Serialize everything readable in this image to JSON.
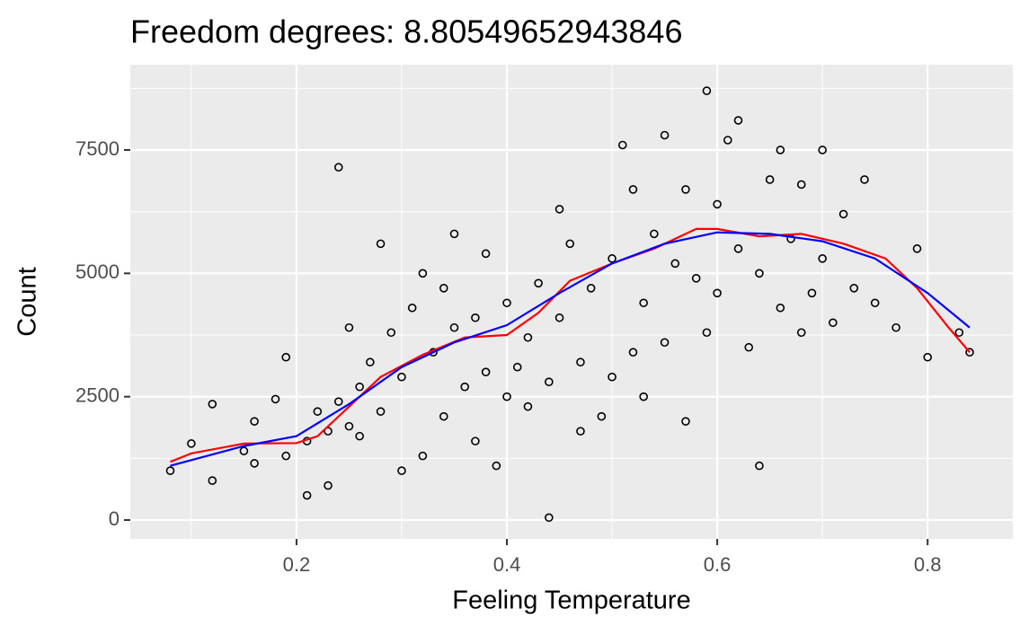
{
  "chart_data": {
    "type": "scatter",
    "title": "Freedom degrees: 8.80549652943846",
    "x_label": "Feeling Temperature",
    "y_label": "Count",
    "xlim": [
      0.042,
      0.881
    ],
    "ylim": [
      -382,
      9229
    ],
    "xticks": [
      0.2,
      0.4,
      0.6,
      0.8
    ],
    "yticks": [
      0,
      2500,
      5000,
      7500
    ],
    "minor_xticks": [
      0.1,
      0.3,
      0.5,
      0.7
    ],
    "minor_yticks": [
      1250,
      3750,
      6250,
      8750
    ],
    "grid": true,
    "series": [
      {
        "type": "scatter",
        "color": "#000000",
        "x": [
          0.08,
          0.1,
          0.12,
          0.12,
          0.15,
          0.16,
          0.16,
          0.18,
          0.19,
          0.19,
          0.21,
          0.21,
          0.22,
          0.23,
          0.23,
          0.24,
          0.24,
          0.25,
          0.25,
          0.26,
          0.26,
          0.27,
          0.28,
          0.28,
          0.29,
          0.3,
          0.3,
          0.31,
          0.32,
          0.32,
          0.33,
          0.34,
          0.34,
          0.35,
          0.35,
          0.36,
          0.37,
          0.37,
          0.38,
          0.38,
          0.39,
          0.4,
          0.4,
          0.41,
          0.42,
          0.42,
          0.43,
          0.44,
          0.44,
          0.45,
          0.45,
          0.46,
          0.47,
          0.47,
          0.48,
          0.49,
          0.5,
          0.5,
          0.51,
          0.52,
          0.52,
          0.53,
          0.53,
          0.54,
          0.55,
          0.55,
          0.56,
          0.57,
          0.57,
          0.58,
          0.59,
          0.59,
          0.6,
          0.6,
          0.61,
          0.62,
          0.62,
          0.63,
          0.64,
          0.64,
          0.65,
          0.66,
          0.66,
          0.67,
          0.68,
          0.68,
          0.69,
          0.7,
          0.7,
          0.71,
          0.72,
          0.73,
          0.74,
          0.75,
          0.77,
          0.79,
          0.8,
          0.83,
          0.84
        ],
        "values": [
          1000,
          1550,
          800,
          2350,
          1400,
          2000,
          1150,
          2450,
          1300,
          3300,
          1600,
          500,
          2200,
          700,
          1800,
          7150,
          2400,
          1900,
          3900,
          2700,
          1700,
          3200,
          5600,
          2200,
          3800,
          1000,
          2900,
          4300,
          5000,
          1300,
          3400,
          4700,
          2100,
          5800,
          3900,
          2700,
          1600,
          4100,
          5400,
          3000,
          1100,
          4400,
          2500,
          3100,
          2300,
          3700,
          4800,
          50,
          2800,
          6300,
          4100,
          5600,
          3200,
          1800,
          4700,
          2100,
          5300,
          2900,
          7600,
          3400,
          6700,
          4400,
          2500,
          5800,
          3600,
          7800,
          5200,
          2000,
          6700,
          4900,
          8700,
          3800,
          6400,
          4600,
          7700,
          5500,
          8100,
          3500,
          1100,
          5000,
          6900,
          7500,
          4300,
          5700,
          3800,
          6800,
          4600,
          5300,
          7500,
          4000,
          6200,
          4700,
          6900,
          4400,
          3900,
          5500,
          3300,
          3800,
          3400
        ]
      },
      {
        "type": "line",
        "color": "#ff0000",
        "x": [
          0.08,
          0.1,
          0.15,
          0.2,
          0.22,
          0.25,
          0.28,
          0.32,
          0.36,
          0.4,
          0.43,
          0.46,
          0.5,
          0.54,
          0.58,
          0.6,
          0.64,
          0.68,
          0.72,
          0.76,
          0.79,
          0.82,
          0.84
        ],
        "values": [
          1180,
          1350,
          1550,
          1560,
          1700,
          2300,
          2900,
          3350,
          3700,
          3750,
          4200,
          4850,
          5200,
          5500,
          5900,
          5900,
          5750,
          5800,
          5600,
          5300,
          4700,
          3900,
          3400
        ]
      },
      {
        "type": "line",
        "color": "#0000ff",
        "x": [
          0.08,
          0.15,
          0.2,
          0.25,
          0.3,
          0.35,
          0.4,
          0.45,
          0.5,
          0.55,
          0.6,
          0.65,
          0.7,
          0.75,
          0.8,
          0.84
        ],
        "values": [
          1100,
          1500,
          1700,
          2350,
          3100,
          3600,
          3950,
          4600,
          5200,
          5600,
          5830,
          5800,
          5650,
          5300,
          4600,
          3900
        ]
      }
    ]
  }
}
